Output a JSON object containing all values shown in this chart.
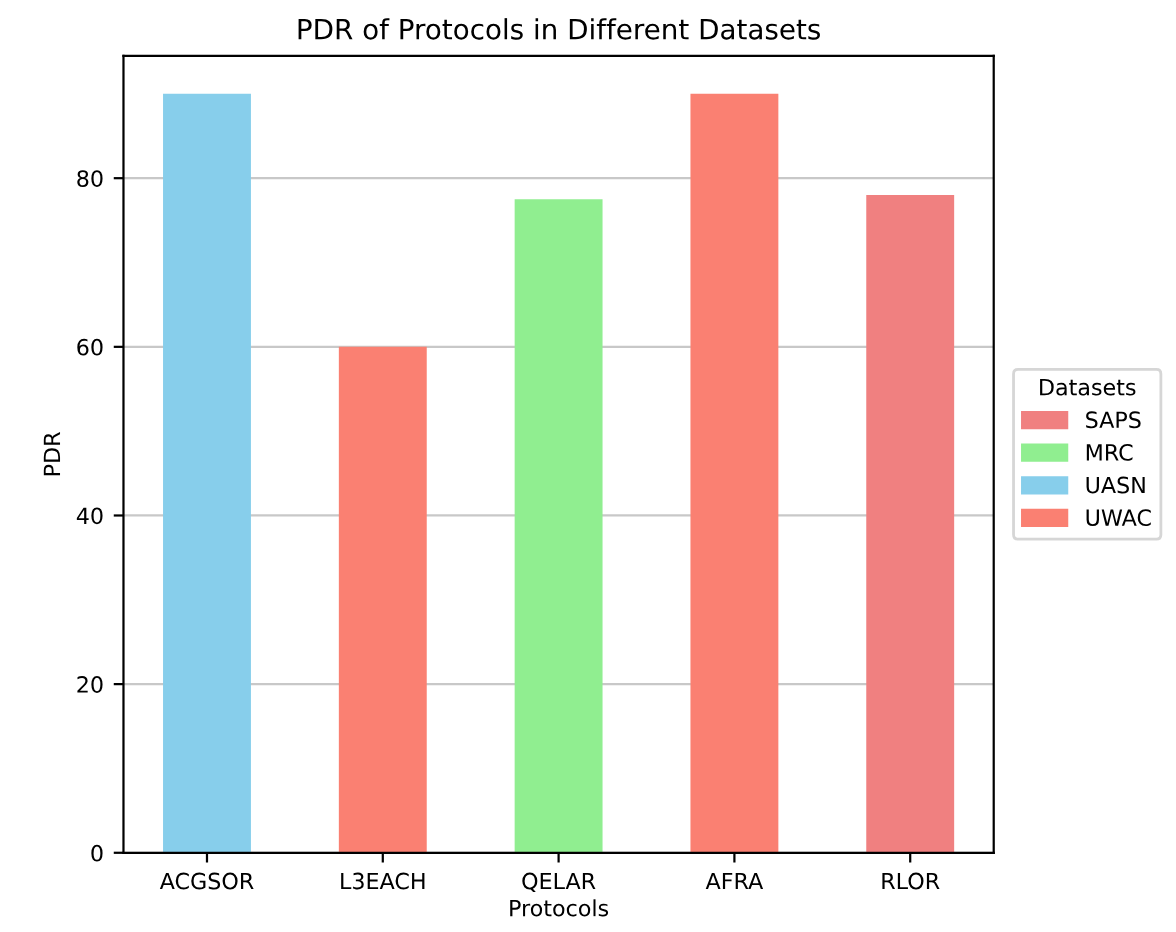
{
  "chart_data": {
    "type": "bar",
    "title": "PDR of Protocols in Different Datasets",
    "xlabel": "Protocols",
    "ylabel": "PDR",
    "legend_title": "Datasets",
    "categories": [
      "ACGSOR",
      "L3EACH",
      "QELAR",
      "AFRA",
      "RLOR"
    ],
    "series": [
      {
        "name": "SAPS",
        "color": "#f08080",
        "values": [
          null,
          null,
          null,
          null,
          78
        ]
      },
      {
        "name": "MRC",
        "color": "#90ee90",
        "values": [
          null,
          null,
          77.5,
          null,
          null
        ]
      },
      {
        "name": "UASN",
        "color": "#87ceeb",
        "values": [
          90,
          null,
          null,
          null,
          null
        ]
      },
      {
        "name": "UWAC",
        "color": "#fa8072",
        "values": [
          null,
          60,
          null,
          90,
          null
        ]
      }
    ],
    "ylim": [
      0,
      94.5
    ],
    "yticks": [
      0,
      20,
      40,
      60,
      80
    ],
    "grid": "y",
    "legend": "right"
  }
}
